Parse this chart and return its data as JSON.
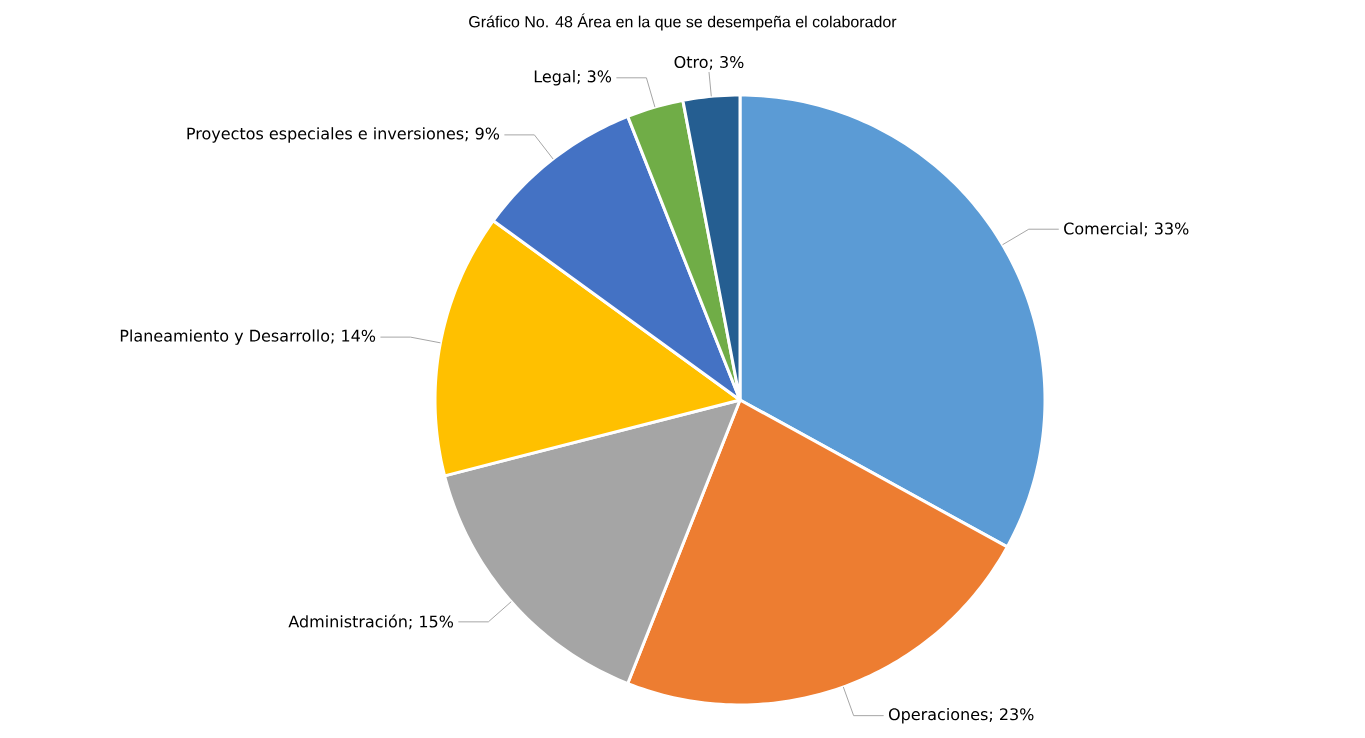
{
  "chart_data": {
    "type": "pie",
    "title": "Gráfico No. 48 Área en la que se desempeña el colaborador",
    "categories": [
      "Comercial",
      "Operaciones",
      "Administración",
      "Planeamiento y Desarrollo",
      "Proyectos especiales e inversiones",
      "Legal",
      "Otro"
    ],
    "values": [
      33,
      23,
      15,
      14,
      9,
      3,
      3
    ],
    "value_labels": [
      "; 33%",
      "; 23%",
      "; 15%",
      "; 14%",
      "; 9%",
      "; 3%",
      "; 3%"
    ],
    "colors": [
      "#5b9bd5",
      "#ed7d31",
      "#a5a5a5",
      "#ffc000",
      "#4472c4",
      "#70ad47",
      "#255e91"
    ]
  }
}
